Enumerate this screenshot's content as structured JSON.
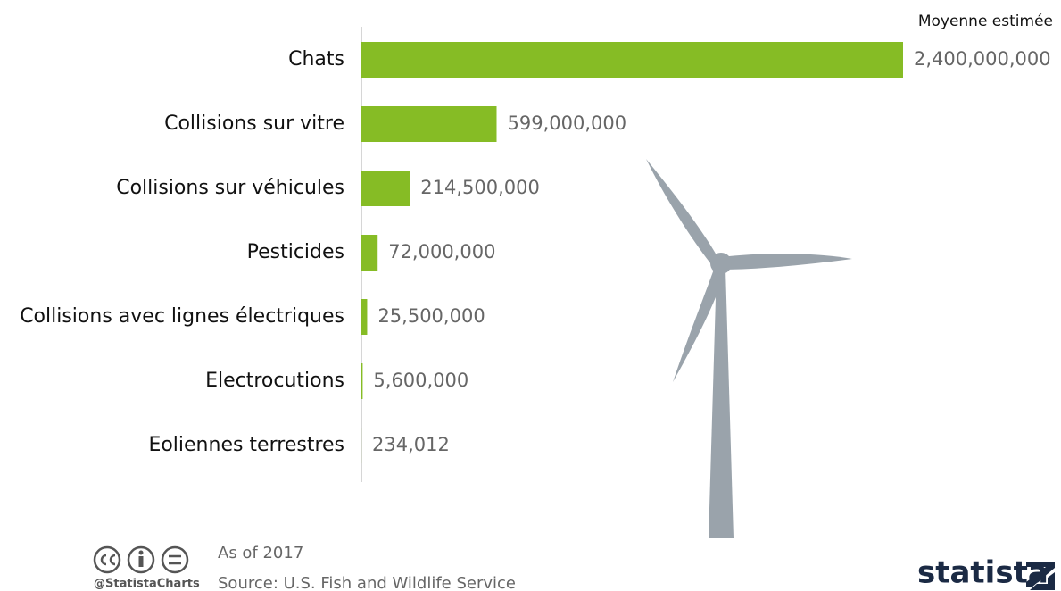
{
  "chart_data": {
    "type": "bar",
    "orientation": "horizontal",
    "categories": [
      "Chats",
      "Collisions sur vitre",
      "Collisions sur véhicules",
      "Pesticides",
      "Collisions avec lignes électriques",
      "Electrocutions",
      "Eoliennes terrestres"
    ],
    "values": [
      2400000000,
      599000000,
      214500000,
      72000000,
      25500000,
      5600000,
      234012
    ],
    "value_labels": [
      "2,400,000,000",
      "599,000,000",
      "214,500,000",
      "72,000,000",
      "25,500,000",
      "5,600,000",
      "234,012"
    ],
    "value_header": "Moyenne estimée",
    "color": "#86bc25",
    "xlim": [
      0,
      2400000000
    ]
  },
  "footer": {
    "note": "As of 2017",
    "source": "Source: U.S. Fish and Wildlife Service",
    "credit": "@StatistaCharts",
    "brand": "statista"
  }
}
